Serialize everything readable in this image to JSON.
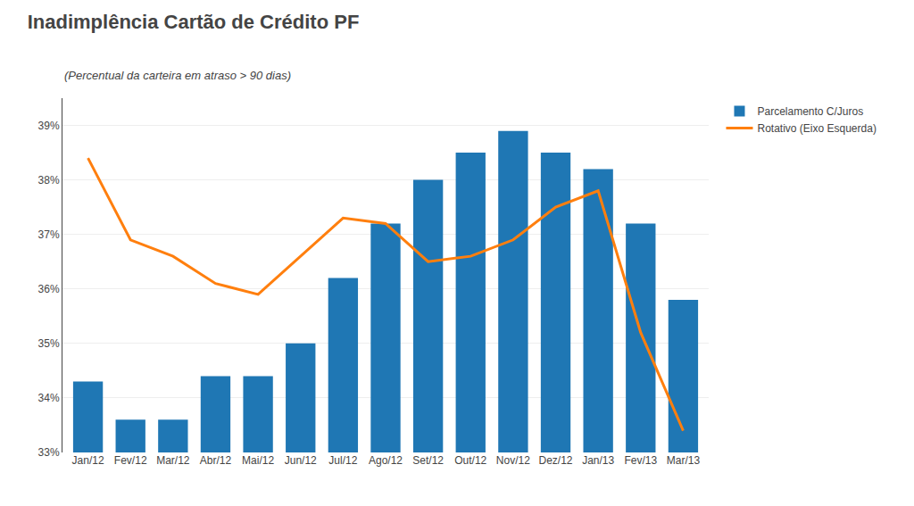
{
  "chart_data": {
    "type": "bar",
    "title": "Inadimplência Cartão de Crédito PF",
    "subtitle": "(Percentual da carteira em atraso > 90 dias)",
    "categories": [
      "Jan/12",
      "Fev/12",
      "Mar/12",
      "Abr/12",
      "Mai/12",
      "Jun/12",
      "Jul/12",
      "Ago/12",
      "Set/12",
      "Out/12",
      "Nov/12",
      "Dez/12",
      "Jan/13",
      "Fev/13",
      "Mar/13"
    ],
    "series": [
      {
        "name": "Parcelamento C/Juros",
        "type": "bar",
        "values": [
          34.3,
          33.6,
          33.6,
          34.4,
          34.4,
          35.0,
          36.2,
          37.2,
          38.0,
          38.5,
          38.9,
          38.5,
          38.2,
          37.2,
          35.8
        ]
      },
      {
        "name": "Rotativo (Eixo Esquerda)",
        "type": "line",
        "values": [
          38.4,
          36.9,
          36.6,
          36.1,
          35.9,
          36.6,
          37.3,
          37.2,
          36.5,
          36.6,
          36.9,
          37.5,
          37.8,
          35.2,
          33.4
        ]
      }
    ],
    "ylim": [
      33.0,
      39.5
    ],
    "yticks": [
      {
        "value": 33,
        "label": "33%"
      },
      {
        "value": 34,
        "label": "34%"
      },
      {
        "value": 35,
        "label": "35%"
      },
      {
        "value": 36,
        "label": "36%"
      },
      {
        "value": 37,
        "label": "37%"
      },
      {
        "value": 38,
        "label": "38%"
      },
      {
        "value": 39,
        "label": "39%"
      }
    ],
    "grid": true,
    "legend": "upper right"
  }
}
